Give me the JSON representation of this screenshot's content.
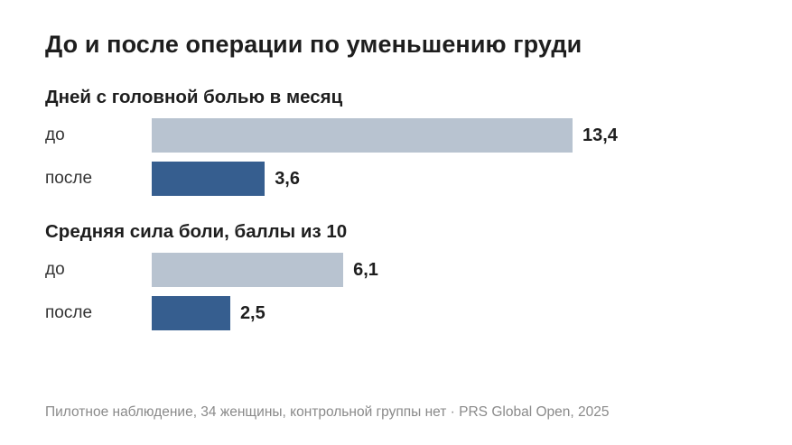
{
  "title": "До и после операции по уменьшению груди",
  "footer": "Пилотное наблюдение, 34 женщины, контрольной группы нет · PRS Global Open, 2025",
  "colors": {
    "before": "#b8c3d0",
    "after": "#365e8f"
  },
  "chart_data": [
    {
      "type": "bar",
      "title": "Дней с головной болью в месяц",
      "categories": [
        "до",
        "после"
      ],
      "values": [
        13.4,
        3.6
      ],
      "value_labels": [
        "13,4",
        "3,6"
      ],
      "xlim": [
        0,
        13.4
      ]
    },
    {
      "type": "bar",
      "title": "Средняя сила боли, баллы из 10",
      "categories": [
        "до",
        "после"
      ],
      "values": [
        6.1,
        2.5
      ],
      "value_labels": [
        "6,1",
        "2,5"
      ],
      "xlim": [
        0,
        13.4
      ]
    }
  ]
}
